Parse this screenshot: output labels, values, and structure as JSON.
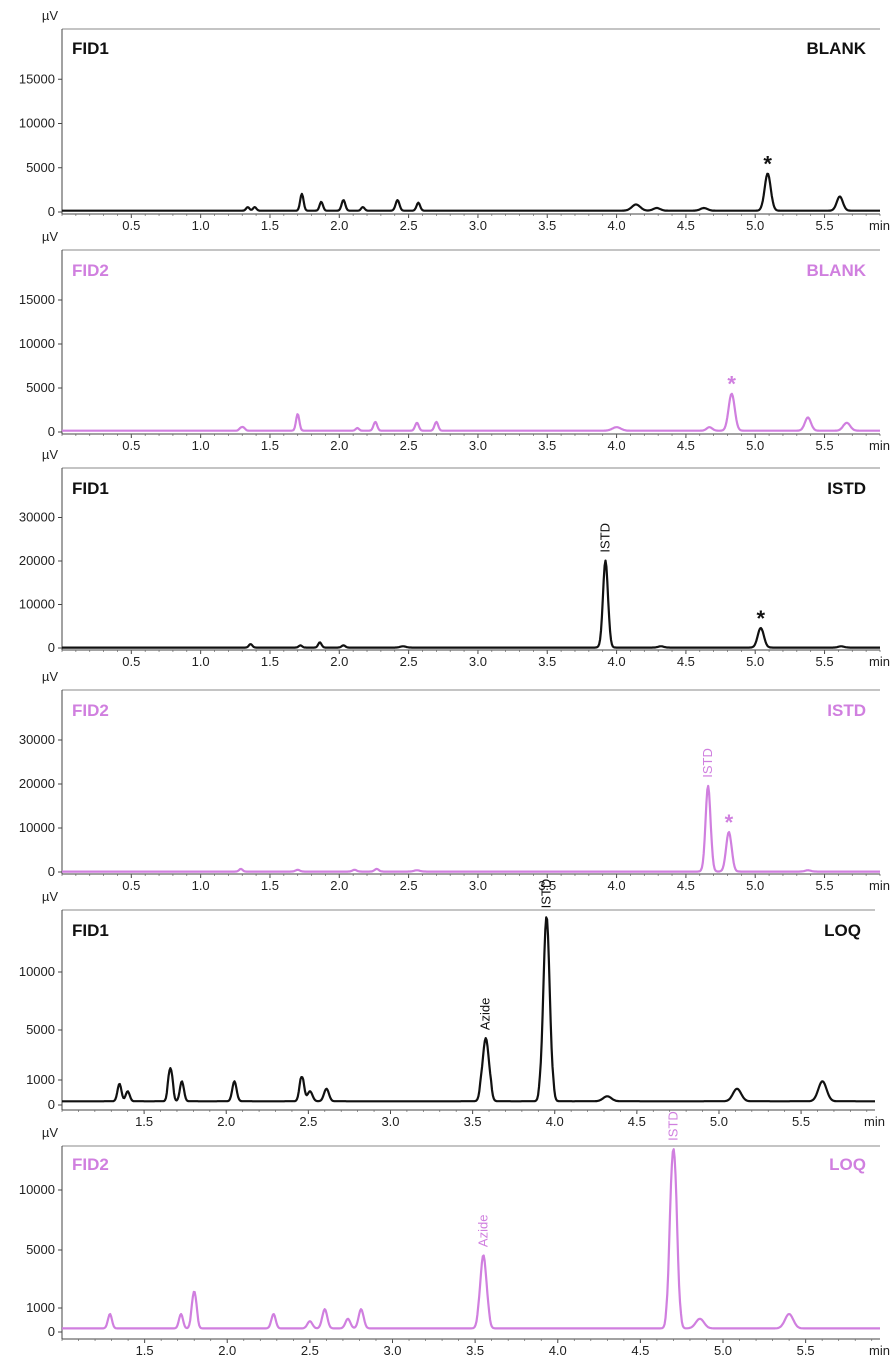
{
  "chart_data": [
    {
      "type": "line",
      "detector": "FID1",
      "sample": "BLANK",
      "color": "#111111",
      "y_unit": "µV",
      "x_unit": "min",
      "xlim": [
        0,
        5.9
      ],
      "ylim": [
        0,
        20000
      ],
      "x_ticks": [
        0.5,
        1.0,
        1.5,
        2.0,
        2.5,
        3.0,
        3.5,
        4.0,
        4.5,
        5.0,
        5.5
      ],
      "y_ticks": [
        0,
        5000,
        10000,
        15000
      ],
      "baseline": 150,
      "peaks": [
        [
          1.34,
          400,
          0.012
        ],
        [
          1.39,
          400,
          0.012
        ],
        [
          1.73,
          1900,
          0.012
        ],
        [
          1.87,
          1000,
          0.012
        ],
        [
          2.03,
          1200,
          0.013
        ],
        [
          2.17,
          400,
          0.012
        ],
        [
          2.42,
          1200,
          0.014
        ],
        [
          2.57,
          900,
          0.013
        ],
        [
          4.14,
          700,
          0.03
        ],
        [
          4.29,
          300,
          0.025
        ],
        [
          4.63,
          300,
          0.025
        ],
        [
          5.09,
          4200,
          0.022
        ],
        [
          5.61,
          1600,
          0.022
        ]
      ],
      "annotations": [
        {
          "text": "*",
          "x": 5.09,
          "y": 4200,
          "rotate": false
        }
      ]
    },
    {
      "type": "line",
      "detector": "FID2",
      "sample": "BLANK",
      "color": "#d07fdf",
      "y_unit": "µV",
      "x_unit": "min",
      "xlim": [
        0,
        5.9
      ],
      "ylim": [
        0,
        20000
      ],
      "x_ticks": [
        0.5,
        1.0,
        1.5,
        2.0,
        2.5,
        3.0,
        3.5,
        4.0,
        4.5,
        5.0,
        5.5
      ],
      "y_ticks": [
        0,
        5000,
        10000,
        15000
      ],
      "baseline": 150,
      "peaks": [
        [
          1.29,
          300,
          0.012
        ],
        [
          1.31,
          300,
          0.012
        ],
        [
          1.7,
          1900,
          0.012
        ],
        [
          2.13,
          300,
          0.012
        ],
        [
          2.26,
          1000,
          0.013
        ],
        [
          2.56,
          900,
          0.013
        ],
        [
          2.7,
          1000,
          0.013
        ],
        [
          4.0,
          400,
          0.03
        ],
        [
          4.67,
          400,
          0.02
        ],
        [
          4.83,
          4200,
          0.022
        ],
        [
          5.38,
          1500,
          0.022
        ],
        [
          5.66,
          900,
          0.025
        ]
      ],
      "annotations": [
        {
          "text": "*",
          "x": 4.83,
          "y": 4200,
          "rotate": false
        }
      ]
    },
    {
      "type": "line",
      "detector": "FID1",
      "sample": "ISTD",
      "color": "#111111",
      "y_unit": "µV",
      "x_unit": "min",
      "xlim": [
        0,
        5.9
      ],
      "ylim": [
        0,
        40000
      ],
      "x_ticks": [
        0.5,
        1.0,
        1.5,
        2.0,
        2.5,
        3.0,
        3.5,
        4.0,
        4.5,
        5.0,
        5.5
      ],
      "y_ticks": [
        0,
        10000,
        20000,
        30000
      ],
      "baseline": 100,
      "peaks": [
        [
          1.36,
          800,
          0.012
        ],
        [
          1.72,
          500,
          0.012
        ],
        [
          1.86,
          1200,
          0.012
        ],
        [
          2.03,
          500,
          0.013
        ],
        [
          2.46,
          300,
          0.02
        ],
        [
          3.92,
          20000,
          0.018
        ],
        [
          4.32,
          300,
          0.02
        ],
        [
          5.04,
          4500,
          0.022
        ],
        [
          5.62,
          300,
          0.02
        ]
      ],
      "annotations": [
        {
          "text": "ISTD",
          "x": 3.92,
          "y": 20000,
          "rotate": true
        },
        {
          "text": "*",
          "x": 5.04,
          "y": 4500,
          "rotate": false
        }
      ]
    },
    {
      "type": "line",
      "detector": "FID2",
      "sample": "ISTD",
      "color": "#d07fdf",
      "y_unit": "µV",
      "x_unit": "min",
      "xlim": [
        0,
        5.9
      ],
      "ylim": [
        0,
        40000
      ],
      "x_ticks": [
        0.5,
        1.0,
        1.5,
        2.0,
        2.5,
        3.0,
        3.5,
        4.0,
        4.5,
        5.0,
        5.5
      ],
      "y_ticks": [
        0,
        10000,
        20000,
        30000
      ],
      "baseline": 100,
      "peaks": [
        [
          1.29,
          600,
          0.012
        ],
        [
          1.7,
          400,
          0.015
        ],
        [
          2.11,
          400,
          0.015
        ],
        [
          2.27,
          600,
          0.015
        ],
        [
          2.56,
          300,
          0.02
        ],
        [
          4.66,
          19500,
          0.018
        ],
        [
          4.81,
          9000,
          0.02
        ],
        [
          5.38,
          300,
          0.02
        ]
      ],
      "annotations": [
        {
          "text": "ISTD",
          "x": 4.66,
          "y": 19500,
          "rotate": true
        },
        {
          "text": "*",
          "x": 4.81,
          "y": 9000,
          "rotate": false
        }
      ]
    },
    {
      "type": "line",
      "detector": "FID1",
      "sample": "LOQ",
      "color": "#111111",
      "y_unit": "µV",
      "x_unit": "min",
      "xlim": [
        1.0,
        5.95
      ],
      "ylim": [
        0,
        15000
      ],
      "x_ticks": [
        1.5,
        2.0,
        2.5,
        3.0,
        3.5,
        4.0,
        4.5,
        5.0,
        5.5
      ],
      "y_ticks": [
        0,
        1000,
        5000,
        10000
      ],
      "baseline": 150,
      "peaks": [
        [
          1.35,
          700,
          0.012
        ],
        [
          1.4,
          400,
          0.012
        ],
        [
          1.66,
          1800,
          0.012
        ],
        [
          1.73,
          800,
          0.012
        ],
        [
          2.05,
          800,
          0.013
        ],
        [
          2.46,
          1100,
          0.013
        ],
        [
          2.51,
          400,
          0.015
        ],
        [
          2.61,
          500,
          0.015
        ],
        [
          3.58,
          4200,
          0.018
        ],
        [
          3.95,
          15000,
          0.018
        ],
        [
          4.32,
          200,
          0.025
        ],
        [
          5.11,
          500,
          0.025
        ],
        [
          5.63,
          800,
          0.025
        ]
      ],
      "annotations": [
        {
          "text": "Azide",
          "x": 3.58,
          "y": 4200,
          "rotate": true
        },
        {
          "text": "ISTD",
          "x": 3.95,
          "y": 15000,
          "rotate": true
        }
      ]
    },
    {
      "type": "line",
      "detector": "FID2",
      "sample": "LOQ",
      "color": "#d07fdf",
      "y_unit": "µV",
      "x_unit": "min",
      "xlim": [
        1.0,
        5.95
      ],
      "ylim": [
        0,
        15000
      ],
      "x_ticks": [
        1.5,
        2.0,
        2.5,
        3.0,
        3.5,
        4.0,
        4.5,
        5.0,
        5.5
      ],
      "y_ticks": [
        0,
        1000,
        5000,
        10000
      ],
      "baseline": 150,
      "peaks": [
        [
          1.29,
          600,
          0.012
        ],
        [
          1.72,
          600,
          0.012
        ],
        [
          1.8,
          2000,
          0.013
        ],
        [
          2.28,
          600,
          0.013
        ],
        [
          2.5,
          300,
          0.015
        ],
        [
          2.59,
          800,
          0.015
        ],
        [
          2.73,
          400,
          0.015
        ],
        [
          2.81,
          800,
          0.015
        ],
        [
          3.55,
          4500,
          0.018
        ],
        [
          4.7,
          15000,
          0.018
        ],
        [
          4.86,
          400,
          0.025
        ],
        [
          5.4,
          600,
          0.025
        ]
      ],
      "annotations": [
        {
          "text": "Azide",
          "x": 3.55,
          "y": 4500,
          "rotate": true
        },
        {
          "text": "ISTD",
          "x": 4.7,
          "y": 15000,
          "rotate": true
        }
      ]
    }
  ]
}
